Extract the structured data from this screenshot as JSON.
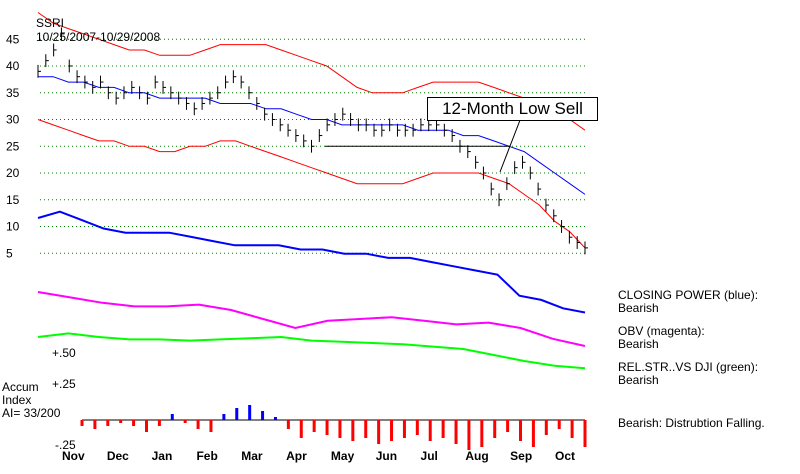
{
  "header": {
    "symbol": "SSRI",
    "date_range": "10/25/2007-10/29/2008"
  },
  "callout": {
    "text": "12-Month Low Sell"
  },
  "indicators": [
    {
      "title": "CLOSING POWER (blue):",
      "status": "Bearish"
    },
    {
      "title": "OBV (magenta):",
      "status": "Bearish"
    },
    {
      "title": "REL.STR..VS DJI (green):",
      "status": "Bearish"
    }
  ],
  "accum": {
    "title_line1": "Accum",
    "title_line2": "Index",
    "ai_value": "AI= 33/200",
    "plus50": "+.50",
    "plus25": "+.25",
    "minus25": "-.25",
    "status": "Bearish: Distrubtion Falling."
  },
  "colors": {
    "price": "#000000",
    "bands": "#ff0000",
    "ma": "#0000ff",
    "closing_power": "#0000ff",
    "obv": "#ff00ff",
    "rel_strength": "#00ff00",
    "accum_pos": "#0000ff",
    "accum_neg": "#ff0000",
    "grid": "#008000"
  },
  "chart_data": {
    "type": "line",
    "x_labels": [
      "Nov",
      "Dec",
      "Jan",
      "Feb",
      "Mar",
      "Apr",
      "May",
      "Jun",
      "Jul",
      "Aug",
      "Sep",
      "Oct"
    ],
    "y_ticks": [
      45,
      40,
      35,
      30,
      25,
      20,
      15,
      10,
      5
    ],
    "ylim": [
      0,
      50
    ],
    "price": [
      39,
      41,
      43,
      46,
      40,
      38,
      37,
      36,
      37,
      35,
      34,
      35,
      36,
      35,
      34,
      37,
      36,
      35,
      34,
      33,
      32,
      33,
      34,
      35,
      37,
      38,
      37,
      35,
      33,
      31,
      30,
      29,
      28,
      27,
      26,
      25,
      27,
      29,
      30,
      31,
      30,
      29,
      29,
      28,
      28,
      29,
      28,
      28,
      28,
      29,
      29,
      29,
      28,
      27,
      25,
      24,
      22,
      20,
      17,
      15,
      18,
      21,
      22,
      20,
      17,
      14,
      12,
      10,
      8,
      7,
      6
    ],
    "upper_band": [
      50,
      48,
      47,
      46,
      45,
      44,
      43,
      43,
      42,
      42,
      42,
      43,
      44,
      44,
      44,
      44,
      43,
      42,
      41,
      40,
      38,
      36,
      35,
      35,
      35,
      36,
      37,
      37,
      37,
      37,
      36,
      35,
      34,
      33,
      31,
      30,
      28
    ],
    "lower_band": [
      30,
      29,
      28,
      27,
      26,
      26,
      25,
      25,
      24,
      24,
      25,
      25,
      26,
      26,
      25,
      24,
      23,
      22,
      21,
      20,
      19,
      18,
      18,
      18,
      18,
      19,
      20,
      20,
      20,
      20,
      19,
      18,
      16,
      14,
      11,
      9,
      6
    ],
    "moving_avg": [
      38,
      38,
      37,
      37,
      36,
      36,
      35,
      35,
      34,
      34,
      34,
      34,
      33,
      33,
      33,
      32,
      32,
      31,
      30,
      30,
      29,
      29,
      29,
      29,
      29,
      28,
      28,
      28,
      27,
      27,
      26,
      25,
      24,
      22,
      20,
      18,
      16
    ],
    "key_level": 25,
    "closing_power": [
      16.5,
      18,
      16,
      14,
      13,
      13,
      13,
      12,
      11,
      10,
      10,
      10,
      9,
      9,
      8,
      8,
      7,
      7,
      6,
      5,
      4,
      3,
      -2,
      -3,
      -5,
      -6
    ],
    "obv": [
      0,
      -0.3,
      -0.6,
      -0.8,
      -0.8,
      -0.7,
      -1.0,
      -1.5,
      -2.0,
      -1.6,
      -1.5,
      -1.4,
      -1.6,
      -1.8,
      -1.7,
      -2.0,
      -2.6,
      -3.0
    ],
    "rel_strength": [
      0,
      0.3,
      0,
      -0.2,
      -0.2,
      -0.3,
      -0.2,
      -0.1,
      0,
      -0.3,
      -0.4,
      -0.5,
      -0.6,
      -0.8,
      -1.0,
      -1.5,
      -2.0,
      -2.4,
      -2.6
    ],
    "accum_index": [
      -0.1,
      -0.15,
      -0.1,
      -0.05,
      -0.1,
      -0.2,
      -0.1,
      0.1,
      -0.05,
      -0.15,
      -0.2,
      0.1,
      0.2,
      0.25,
      0.15,
      0.05,
      -0.15,
      -0.3,
      -0.2,
      -0.25,
      -0.3,
      -0.35,
      -0.3,
      -0.4,
      -0.35,
      -0.3,
      -0.25,
      -0.35,
      -0.3,
      -0.4,
      -0.5,
      -0.45,
      -0.3,
      -0.2,
      -0.35,
      -0.45,
      -0.25,
      -0.15,
      -0.3,
      -0.45
    ]
  }
}
